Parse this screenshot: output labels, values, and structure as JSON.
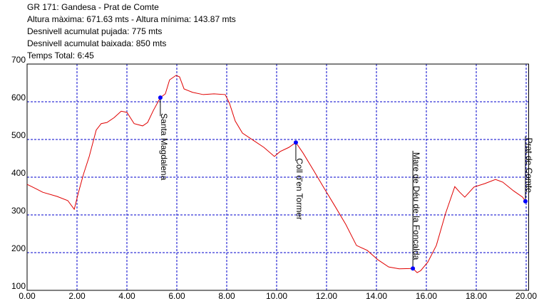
{
  "header": {
    "lines": [
      "GR 171: Gandesa - Prat de Comte",
      "Altura màxima: 671.63 mts - Altura mínima: 143.87 mts",
      "Desnivell acumulat pujada:  775 mts",
      "Desnivell acumulat baixada: 850 mts",
      "Temps Total: 6:45"
    ]
  },
  "chart_data": {
    "type": "line",
    "x": [
      0,
      0.34,
      0.63,
      1.2,
      1.63,
      1.89,
      2.06,
      2.26,
      2.49,
      2.77,
      2.97,
      3.2,
      3.49,
      3.77,
      4.0,
      4.29,
      4.63,
      4.83,
      5.06,
      5.34,
      5.54,
      5.71,
      5.97,
      6.11,
      6.29,
      6.63,
      7.06,
      7.49,
      7.94,
      8.11,
      8.34,
      8.63,
      9.06,
      9.49,
      9.91,
      10.14,
      10.49,
      10.77,
      11.06,
      11.49,
      11.91,
      12.34,
      12.77,
      13.2,
      13.63,
      14.06,
      14.49,
      14.91,
      15.46,
      15.63,
      15.77,
      16.06,
      16.4,
      16.77,
      17.14,
      17.34,
      17.54,
      17.91,
      18.34,
      18.77,
      19.06,
      19.49,
      19.86,
      19.97
    ],
    "series": [
      {
        "color": "#e00000",
        "values": [
          381,
          370,
          360,
          349,
          338,
          315,
          360,
          408,
          455,
          525,
          542,
          545,
          558,
          575,
          572,
          542,
          536,
          545,
          577,
          611,
          621,
          658,
          670,
          666,
          634,
          625,
          619,
          621,
          619,
          596,
          549,
          517,
          498,
          479,
          455,
          468,
          479,
          492,
          464,
          417,
          370,
          323,
          275,
          219,
          206,
          181,
          162,
          157,
          158,
          147,
          152,
          175,
          219,
          304,
          375,
          360,
          347,
          374,
          383,
          394,
          387,
          364,
          347,
          336
        ]
      }
    ],
    "waypoints": [
      {
        "name": "Santa Magdalena",
        "x": 5.34,
        "y": 611,
        "color": "#0000ff"
      },
      {
        "name": "Coll d'en Tormer",
        "x": 10.77,
        "y": 492,
        "color": "#0000ff"
      },
      {
        "name": "Mare de Déu de la Foncalda",
        "x": 15.46,
        "y": 158,
        "color": "#0000ff"
      },
      {
        "name": "Prat de Comte",
        "x": 19.97,
        "y": 336,
        "color": "#0000ff"
      }
    ],
    "xlim": [
      0,
      20.1
    ],
    "ylim": [
      100,
      700
    ],
    "xticks": [
      {
        "value": 0,
        "label": "0.00"
      },
      {
        "value": 2,
        "label": "2.00"
      },
      {
        "value": 4,
        "label": "4.00"
      },
      {
        "value": 6,
        "label": "6.00"
      },
      {
        "value": 8,
        "label": "8.00"
      },
      {
        "value": 10,
        "label": "10.00"
      },
      {
        "value": 12,
        "label": "12.00"
      },
      {
        "value": 14,
        "label": "14.00"
      },
      {
        "value": 16,
        "label": "16.00"
      },
      {
        "value": 18,
        "label": "18.00"
      },
      {
        "value": 20,
        "label": "20.00"
      }
    ],
    "yticks": [
      100,
      200,
      300,
      400,
      500,
      600,
      700
    ],
    "grid": true,
    "grid_color": "#0000cc"
  }
}
